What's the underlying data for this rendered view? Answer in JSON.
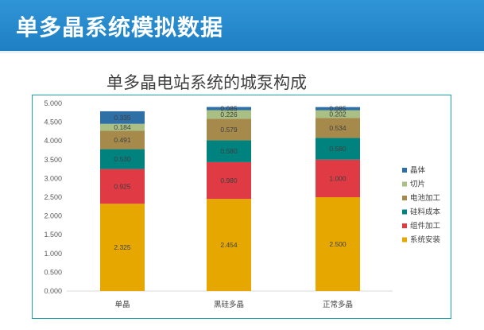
{
  "header": {
    "title": "单多晶系统模拟数据"
  },
  "chart_data": {
    "type": "bar",
    "stacked": true,
    "title": "单多晶电站系统的城泵构成",
    "categories": [
      "单晶",
      "黑硅多晶",
      "正常多晶"
    ],
    "ylim": [
      0,
      5
    ],
    "yticks": [
      "0.000",
      "0.500",
      "1.000",
      "1.500",
      "2.000",
      "2.500",
      "3.000",
      "3.500",
      "4.000",
      "4.500",
      "5.000"
    ],
    "series": [
      {
        "name": "系统安装",
        "color": "#e6a800",
        "values": [
          2.325,
          2.454,
          2.5
        ],
        "labels": [
          "2.325",
          "2.454",
          "2.500"
        ]
      },
      {
        "name": "组件加工",
        "color": "#e03a44",
        "values": [
          0.925,
          0.98,
          1.0
        ],
        "labels": [
          "0.925",
          "0.980",
          "1.000"
        ]
      },
      {
        "name": "硅料成本",
        "color": "#00827f",
        "values": [
          0.53,
          0.58,
          0.58
        ],
        "labels": [
          "0.530",
          "0.580",
          "0.580"
        ]
      },
      {
        "name": "电池加工",
        "color": "#a58a4c",
        "values": [
          0.491,
          0.579,
          0.534
        ],
        "labels": [
          "0.491",
          "0.579",
          "0.534"
        ]
      },
      {
        "name": "切片",
        "color": "#a9bf83",
        "values": [
          0.184,
          0.226,
          0.202
        ],
        "labels": [
          "0.184",
          "0.226",
          "0.202"
        ]
      },
      {
        "name": "晶体",
        "color": "#2e6fa6",
        "values": [
          0.335,
          0.085,
          0.085
        ],
        "labels": [
          "0.335",
          "0.085",
          "0.085"
        ]
      }
    ],
    "legend_order": [
      "晶体",
      "切片",
      "电池加工",
      "硅料成本",
      "组件加工",
      "系统安装"
    ],
    "legend": "right"
  }
}
